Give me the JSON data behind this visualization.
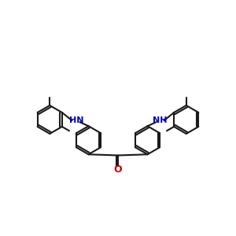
{
  "background_color": "#ffffff",
  "bond_color": "#1a1a1a",
  "nitrogen_color": "#0000cc",
  "oxygen_color": "#cc0000",
  "line_width": 1.5,
  "figsize": [
    3.0,
    3.0
  ],
  "dpi": 100,
  "xlim": [
    0,
    12
  ],
  "ylim": [
    2,
    9
  ]
}
